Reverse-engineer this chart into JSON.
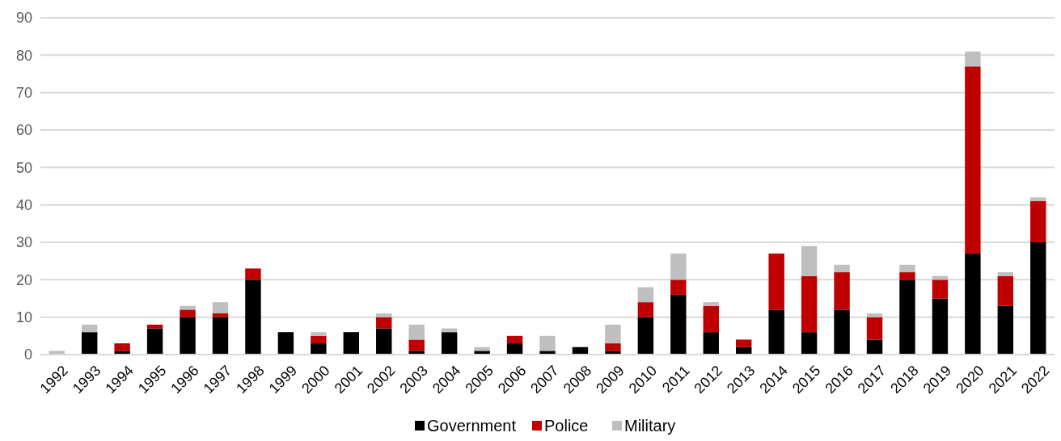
{
  "chart_data": {
    "type": "bar",
    "stacked": true,
    "categories": [
      "1992",
      "1993",
      "1994",
      "1995",
      "1996",
      "1997",
      "1998",
      "1999",
      "2000",
      "2001",
      "2002",
      "2003",
      "2004",
      "2005",
      "2006",
      "2007",
      "2008",
      "2009",
      "2010",
      "2011",
      "2012",
      "2013",
      "2014",
      "2015",
      "2016",
      "2017",
      "2018",
      "2019",
      "2020",
      "2021",
      "2022"
    ],
    "series": [
      {
        "name": "Government",
        "color": "#000000",
        "values": [
          0,
          6,
          1,
          7,
          10,
          10,
          20,
          6,
          3,
          6,
          7,
          1,
          6,
          1,
          3,
          1,
          2,
          1,
          10,
          16,
          6,
          2,
          12,
          6,
          12,
          4,
          20,
          15,
          27,
          13,
          30
        ]
      },
      {
        "name": "Police",
        "color": "#c00000",
        "values": [
          0,
          0,
          2,
          1,
          2,
          1,
          3,
          0,
          2,
          0,
          3,
          3,
          0,
          0,
          2,
          0,
          0,
          2,
          4,
          4,
          7,
          2,
          15,
          15,
          10,
          6,
          2,
          5,
          50,
          8,
          11
        ]
      },
      {
        "name": "Military",
        "color": "#bfbfbf",
        "values": [
          1,
          2,
          0,
          0,
          1,
          3,
          0,
          0,
          1,
          0,
          1,
          4,
          1,
          1,
          0,
          4,
          0,
          5,
          4,
          7,
          1,
          0,
          0,
          8,
          2,
          1,
          2,
          1,
          4,
          1,
          1
        ]
      }
    ],
    "ylim": [
      0,
      90
    ],
    "yticks": [
      0,
      10,
      20,
      30,
      40,
      50,
      60,
      70,
      80,
      90
    ],
    "grid": "y",
    "legend": "bottom"
  }
}
